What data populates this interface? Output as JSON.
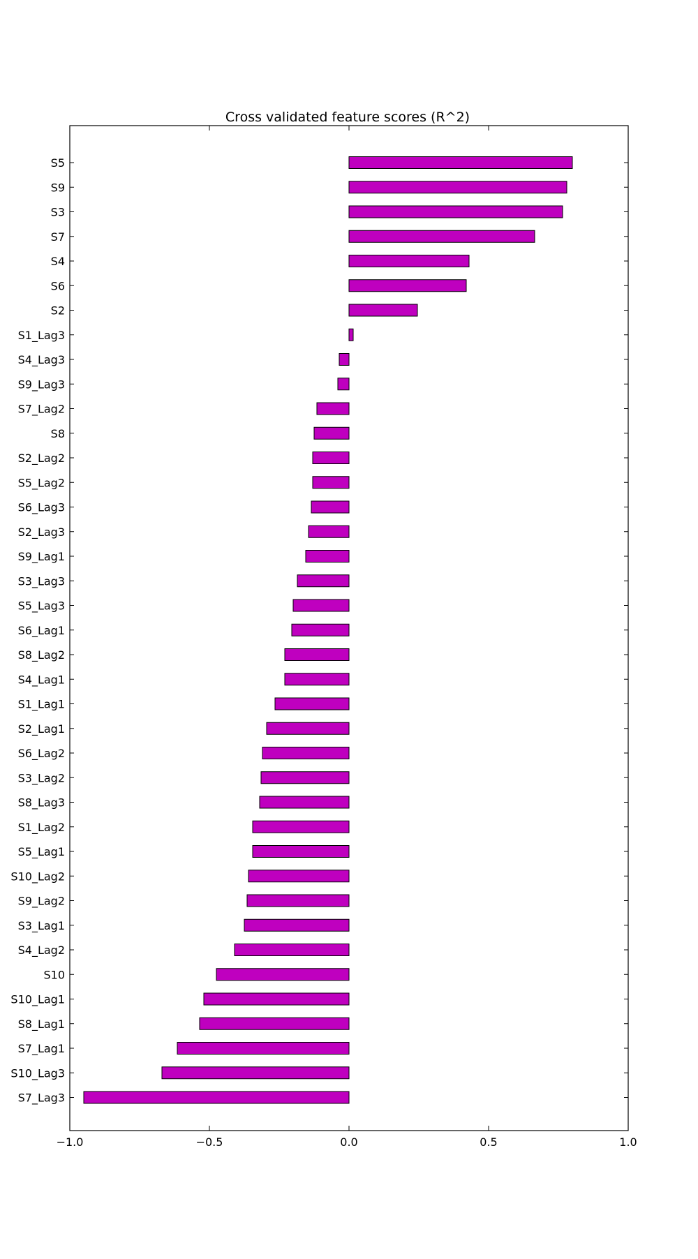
{
  "chart_data": {
    "type": "bar",
    "orientation": "horizontal",
    "title": "Cross validated feature scores (R^2)",
    "xlabel": "",
    "ylabel": "",
    "xlim": [
      -1.0,
      1.0
    ],
    "xticks": [
      -1.0,
      -0.5,
      0.0,
      0.5,
      1.0
    ],
    "xtick_labels": [
      "−1.0",
      "−0.5",
      "0.0",
      "0.5",
      "1.0"
    ],
    "grid": false,
    "bar_color": "#bf00bf",
    "bar_edge_color": "#000000",
    "categories": [
      "S5",
      "S9",
      "S3",
      "S7",
      "S4",
      "S6",
      "S2",
      "S1_Lag3",
      "S4_Lag3",
      "S9_Lag3",
      "S7_Lag2",
      "S8",
      "S2_Lag2",
      "S5_Lag2",
      "S6_Lag3",
      "S2_Lag3",
      "S9_Lag1",
      "S3_Lag3",
      "S5_Lag3",
      "S6_Lag1",
      "S8_Lag2",
      "S4_Lag1",
      "S1_Lag1",
      "S2_Lag1",
      "S6_Lag2",
      "S3_Lag2",
      "S8_Lag3",
      "S1_Lag2",
      "S5_Lag1",
      "S10_Lag2",
      "S9_Lag2",
      "S3_Lag1",
      "S4_Lag2",
      "S10",
      "S10_Lag1",
      "S8_Lag1",
      "S7_Lag1",
      "S10_Lag3",
      "S7_Lag3"
    ],
    "values": [
      0.8,
      0.78,
      0.765,
      0.665,
      0.43,
      0.42,
      0.245,
      0.015,
      -0.035,
      -0.04,
      -0.115,
      -0.125,
      -0.13,
      -0.13,
      -0.135,
      -0.145,
      -0.155,
      -0.185,
      -0.2,
      -0.205,
      -0.23,
      -0.23,
      -0.265,
      -0.295,
      -0.31,
      -0.315,
      -0.32,
      -0.345,
      -0.345,
      -0.36,
      -0.365,
      -0.375,
      -0.41,
      -0.475,
      -0.52,
      -0.535,
      -0.615,
      -0.67,
      -0.95
    ]
  }
}
